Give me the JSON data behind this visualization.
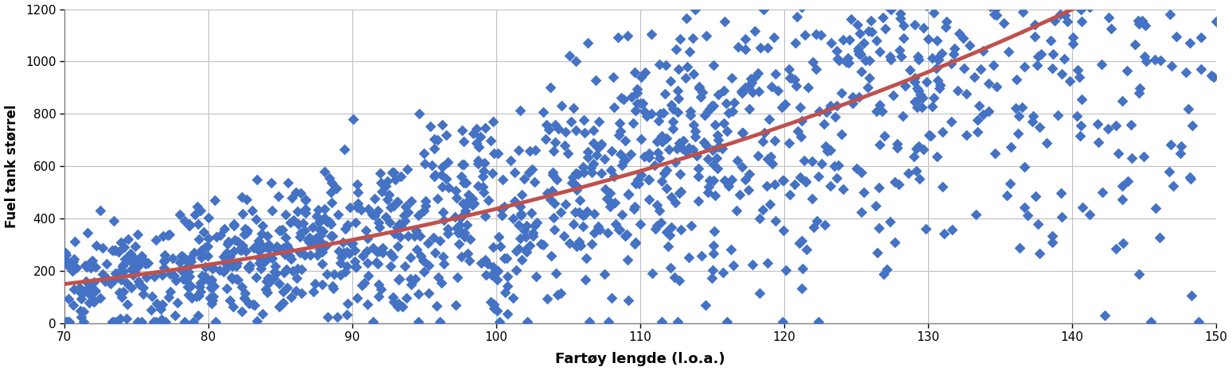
{
  "xlabel": "Fartøy lengde (l.o.a.)",
  "ylabel": "Fuel tank størrel",
  "xlim": [
    70,
    150
  ],
  "ylim": [
    0,
    1200
  ],
  "xticks": [
    70,
    80,
    90,
    100,
    110,
    120,
    130,
    140,
    150
  ],
  "yticks": [
    0,
    200,
    400,
    600,
    800,
    1000,
    1200
  ],
  "scatter_color": "#4472C4",
  "trend_color": "#C0504D",
  "trend_linewidth": 3.5,
  "marker_size": 7,
  "background_color": "#FFFFFF",
  "grid_color": "#BFBFBF",
  "trend_a": 0.00375,
  "trend_b": 2.85,
  "n_points": 1500,
  "seed": 123
}
